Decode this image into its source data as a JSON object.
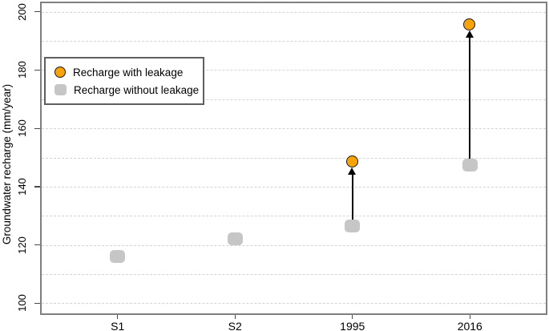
{
  "chart_data": {
    "type": "scatter",
    "title": "",
    "xlabel": "",
    "ylabel": "Groundwater recharge (mm/year)",
    "categories": [
      "S1",
      "S2",
      "1995",
      "2016"
    ],
    "series": [
      {
        "name": "Recharge with leakage",
        "marker": "circle",
        "color": "#F9A30B",
        "edge_color": "#1a1a1a",
        "values": [
          null,
          null,
          148.5,
          195.5
        ]
      },
      {
        "name": "Recharge without leakage",
        "marker": "rounded-square",
        "color": "#C6C6C6",
        "values": [
          116,
          122,
          126.5,
          147.5
        ]
      }
    ],
    "annotations": [
      {
        "type": "arrow",
        "category": "1995",
        "from": 126.5,
        "to": 148.5,
        "color": "#000000"
      },
      {
        "type": "arrow",
        "category": "2016",
        "from": 147.5,
        "to": 195.5,
        "color": "#000000"
      }
    ],
    "ylim": [
      96,
      203.5
    ],
    "xlim_units": [
      0.34,
      4.66
    ],
    "yticks": [
      100,
      120,
      140,
      160,
      180,
      200
    ],
    "ytick_labels": [
      "100",
      "120",
      "140",
      "160",
      "180",
      "200"
    ],
    "gridline_values": [
      100,
      110,
      120,
      130,
      140,
      150,
      160,
      170,
      180,
      190,
      200
    ],
    "grid": true,
    "grid_style": "dashed",
    "legend_position": "top-left"
  },
  "colors": {
    "background": "#ffffff",
    "plot_border": "#7f7f7f",
    "grid": "#d4d4d4",
    "tick": "#4a4a4a",
    "text": "#000000",
    "arrow": "#000000",
    "legend_border": "#5f5f5f"
  }
}
